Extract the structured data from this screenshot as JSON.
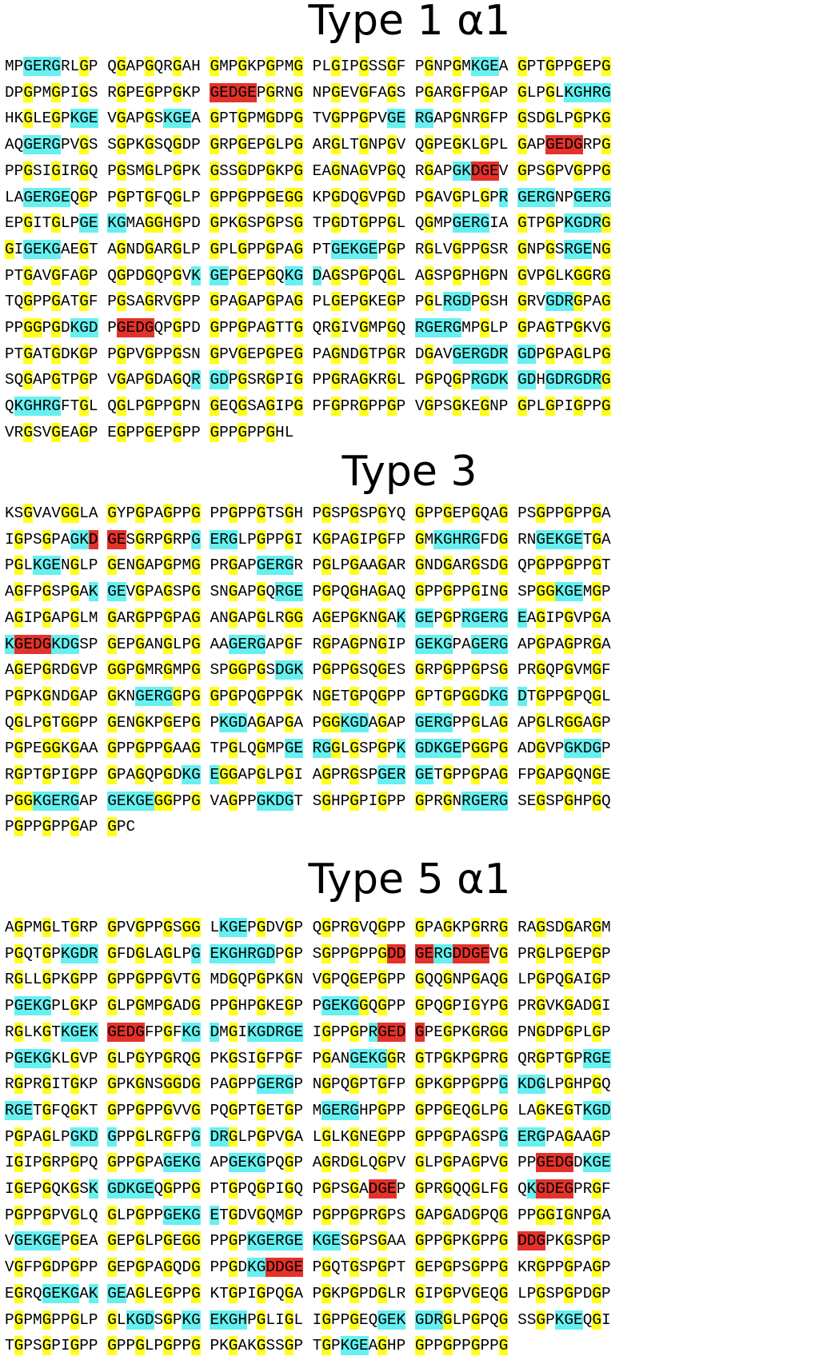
{
  "sections": [
    {
      "title": "Type 1 α1",
      "lines": [
        "MPGERGRLGP QGAPGQRGAH GMPGKPGPMG PLGIPGSSGF PGNPGMKGEA GPTGPPGEPG",
        "DPGPMGPIGS RGPEGPPGKP GEDGEPGRNG NPGEVGFAGS PGARGFPGAP GLPGLKGHRG",
        "HKGLEGPKGE VGAPGSKGEA GPTGPMGDPG TVGPPGPVGE RGAPGNRGFP GSDGLPGPKG",
        "AQGERGPVGS SGPKGSQGDP GRPGEPGLPG ARGLTGNPGV QGPEGKLGPL GAPGEDGRPG",
        "PPGSIGIRGQ PGSMGLPGPK GSSGDPGKPG EAGNAGVPGQ RGAPGKDGEV GPSGPVGPPG",
        "LAGERGEQGP PGPTGFQGLP GPPGPPGEGG KPGDQGVPGD PGAVGPLGPR GERGNPGERG",
        "EPGITGLPGE KGMAGGHGPD GPKGSPGPSG TPGDTGPPGL QGMPGERGIA GTPGPKGDRG",
        "GIGEKGAEGT AGNDGARGLP GPLGPPGPAG PTGEKGEPGP RGLVGPPGSR GNPGSRGENG",
        "PTGAVGFAGP QGPDGQPGVK GEPGEPGQKG DAGSPGPQGL AGSPGPHGPN GVPGLKGGRG",
        "TQGPPGATGF PGSAGRVGPP GPAGAPGPAG PLGEPGKEGP PGLRGDPGSH GRVGDRGPAG",
        "PPGGPGDKGD PGEDGQPGPD GPPGPAGTTG QRGIVGMPGQ RGERGMPGLP GPAGTPGKVG",
        "PTGATGDKGP PGPVGPPGSN GPVGEPGPEG PAGNDGTPGR DGAVGERGDR GDPGPAGLPG",
        "SQGAPGTPGP VGAPGDAGQR GDPGSRGPIG PPGRAGKRGL PGPQGPRGDK GDHGDRGDRG",
        "QKGHRGFTGL QGLPGPPGPN GEQGSAGIPG PFGPRGPPGP VGPSGKEGNP GPLGPIGPPG",
        "VRGSVGEAGP EGPPGEPGPP GPPGPPGHL"
      ]
    },
    {
      "title": "Type 3",
      "lines": [
        "KSGVAVGGLA GYPGPAGPPG PPGPPGTSGH PGSPGSPGYQ GPPGEPGQAG PSGPPGPPGA",
        "IGPSGPAGKD GESGRPGRPG ERGLPGPPGI KGPAGIPGFP GMKGHRGFDG RNGEKGETGA",
        "PGLKGENGLP GENGAPGPMG PRGAPGERGR PGLPGAAGAR GNDGARGSDG QPGPPGPPGT",
        "AGFPGSPGAK GEVGPAGSPG SNGAPGQRGE PGPQGHAGAQ GPPGPPGING SPGGKGEMGP",
        "AGIPGAPGLM GARGPPGPAG ANGAPGLRGG AGEPGKNGAK GEPGPRGERG EAGIPGVPGA",
        "KGEDGKDGSP GEPGANGLPG AAGERGAPGF RGPAGPNGIP GEKGPAGERG APGPAGPRGA",
        "AGEPGRDGVP GGPGMRGMPG SPGGPGSDGK PGPPGSQGES GRPGPPGPSG PRGQPGVMGF",
        "PGPKGNDGAP GKNGERGGPG GPGPQGPPGK NGETGPQGPP GPTGPGGDKG DTGPPGPQGL",
        "QGLPGTGGPP GENGKPGEPG PKGDAGAPGA PGGKGDAGAP GERGPPGLAG APGLRGGAGP",
        "PGPEGGKGAA GPPGPPGAAG TPGLQGMPGE RGGLGSPGPK GDKGEPGGPG ADGVPGKDGP",
        "RGPTGPIGPP GPAGQPGDKG EGGAPGLPGI AGPRGSPGER GETGPPGPAG FPGAPGQNGE",
        "PGGKGERGAP GEKGEGGPPG VAGPPGKDGT SGHPGPIGPP GPRGNRGERG SEGSPGHPGQ",
        "PGPPGPPGAP GPC"
      ]
    },
    {
      "title": "Type 5 α1",
      "lines": [
        "AGPMGLTGRP GPVGPPGSGG LKGEPGDVGP QGPRGVQGPP GPAGKPGRRG RAGSDGARGM",
        "PGQTGPKGDR GFDGLAGLPG EKGHRGDPGP SGPPGPPGDD GERGDDGEVG PRGLPGEPGP",
        "RGLLGPKGPP GPPGPPGVTG MDGQPGPKGN VGPQGEPGPP GQQGNPGAQG LPGPQGAIGP",
        "PGEKGPLGKP GLPGMPGADG PPGHPGKEGP PGEKGGQGPP GPQGPIGYPG PRGVKGADGI",
        "RGLKGTKGEK GEDGFPGFKG DMGIKGDRGE IGPPGPRGED GPEGPKGRGG PNGDPGPLGP",
        "PGEKGKLGVP GLPGYPGRQG PKGSIGFPGF PGANGEKGGR GTPGKPGPRG QRGPTGPRGE",
        "RGPRGITGKP GPKGNSGGDG PAGPPGERGP NGPQGPTGFP GPKGPPGPPG KDGLPGHPGQ",
        "RGETGFQGKT GPPGPPGVVG PQGPTGETGP MGERGHPGPP GPPGEQGLPG LAGKEGTKGD",
        "PGPAGLPGKD GPPGLRGFPG DRGLPGPVGA LGLKGNEGPP GPPGPAGSPG ERGPAGAAGP",
        "IGIPGRPGPQ GPPGPAGEKG APGEKGPQGP AGRDGLQGPV GLPGPAGPVG PPGEDGDKGE",
        "IGEPGQKGSK GDKGEQGPPG PTGPQGPIGQ PGPSGADGEP GPRGQQGLFG QKGDEGPRGF",
        "PGPPGPVGLQ GLPGPPGEKG ETGDVGQMGP PGPPGPRGPS GAPGADGPQG PPGGIGNPGA",
        "VGEKGEPGEA GEPGLPGEGG PPGPKGERGE KGESGPSGAA GPPGPKGPPG DDGPKGSPGP",
        "VGFPGDPGPP GEPGPAGQDG PPGDKGDDGE PGQTGSPGPT GEPGPSGPPG KRGPPGPAGP",
        "EGRQGEKGAK GEAGLEGPPG KTGPIGPQGA PGKPGPDGLR GIPGPVGEQG LPGSPGPDGP",
        "PGPMGPPGLP GLKGDSGPKG EKGHPGLIGL IGPPGEQGEK GDRGLPGPQG SSGPKGEQGI",
        "TGPSGPIGPP GPPGLPGPPG PKGAKGSSGP TGPKGEAGHP GPPGPPGPPG"
      ]
    }
  ],
  "highlight_colors": {
    "gly_triplet": "#ffff1a",
    "cation_motif": "#66f0f0",
    "acidic_motif": "#e4322b"
  }
}
